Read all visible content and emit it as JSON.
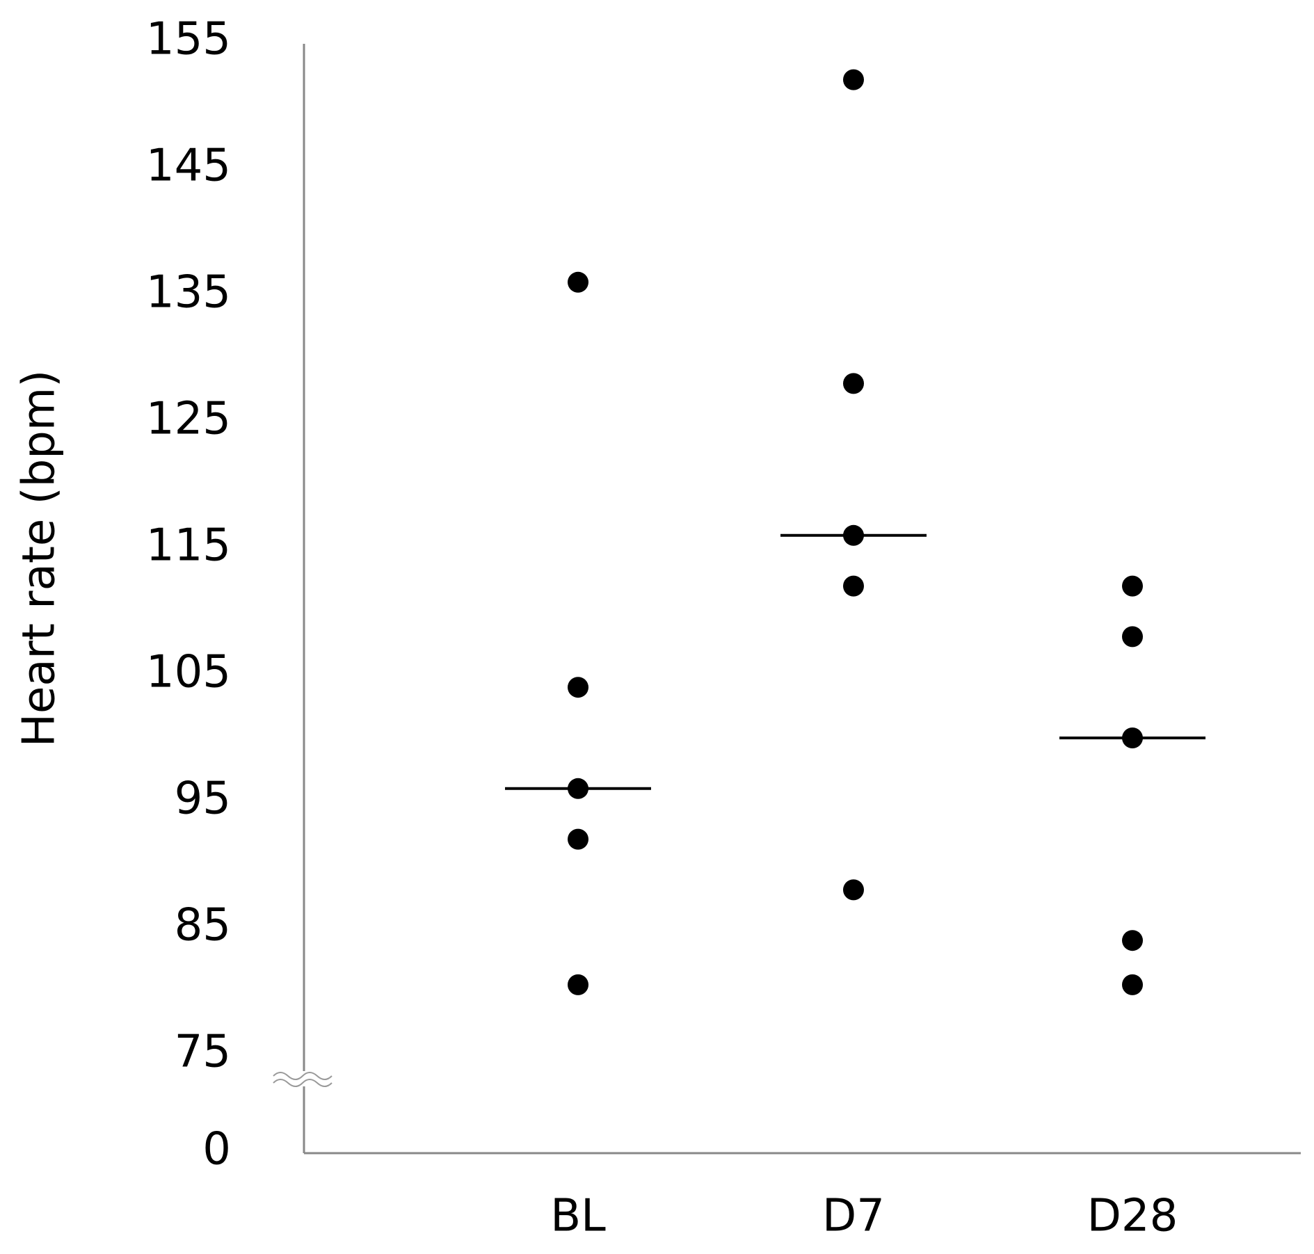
{
  "chart_data": {
    "type": "dot",
    "y_label": "Heart rate (bpm)",
    "categories": [
      "BL",
      "D7",
      "D28"
    ],
    "points": [
      [
        136,
        104,
        96,
        92,
        80.5
      ],
      [
        152,
        128,
        116,
        112,
        88
      ],
      [
        112,
        108,
        100,
        84,
        80.5
      ]
    ],
    "medians": [
      96,
      116,
      100
    ],
    "color": "#000000",
    "ylim": [
      0,
      155
    ],
    "yticks": [
      0,
      75,
      85,
      95,
      105,
      115,
      125,
      135,
      145,
      155
    ],
    "axis_break": true,
    "grid": false
  }
}
